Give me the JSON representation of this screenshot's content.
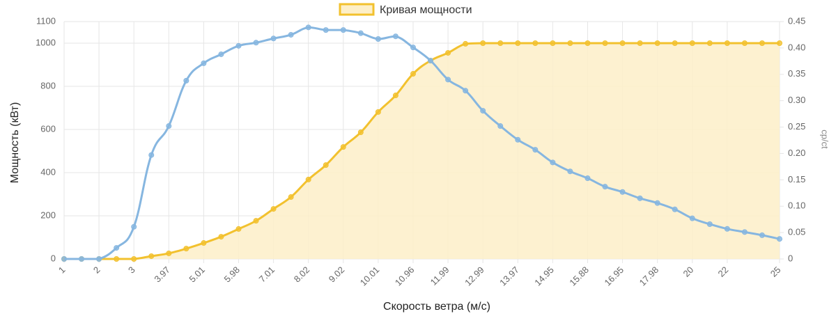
{
  "chart_data": {
    "type": "line",
    "x_label": "Скорость ветра (м/с)",
    "y_label": "Мощность (кВт)",
    "y2_label": "cp/ct",
    "categories": [
      "1",
      null,
      "2",
      null,
      "3",
      null,
      "3.97",
      null,
      "5.01",
      null,
      "5.98",
      null,
      "7.01",
      null,
      "8.02",
      null,
      "9.02",
      null,
      "10.01",
      null,
      "10.96",
      null,
      "11.99",
      null,
      "12.99",
      null,
      "13.97",
      null,
      "14.95",
      null,
      "15.88",
      null,
      "16.95",
      null,
      "17.98",
      null,
      "20",
      null,
      "22",
      null,
      null,
      "25"
    ],
    "series": [
      {
        "name": "Кривая мощности",
        "color": "#f2c12e",
        "fill": "#fdefc8",
        "values": [
          0,
          0,
          0,
          0,
          0,
          13,
          26,
          48,
          74,
          103,
          139,
          177,
          232,
          287,
          368,
          435,
          519,
          587,
          681,
          758,
          858,
          919,
          955,
          997,
          1000,
          1000,
          1000,
          1000,
          1000,
          1000,
          1000,
          1000,
          1000,
          1000,
          1000,
          1000,
          1000,
          1000,
          1000,
          1000,
          1000,
          1000
        ]
      },
      {
        "color": "#86b6e0",
        "axis": "y2",
        "values": [
          0,
          0,
          0,
          0.021,
          0.061,
          0.197,
          0.252,
          0.338,
          0.371,
          0.388,
          0.404,
          0.41,
          0.418,
          0.425,
          0.439,
          0.434,
          0.434,
          0.428,
          0.417,
          0.422,
          0.401,
          0.376,
          0.34,
          0.319,
          0.281,
          0.252,
          0.226,
          0.207,
          0.183,
          0.166,
          0.153,
          0.137,
          0.127,
          0.115,
          0.106,
          0.094,
          0.077,
          0.066,
          0.057,
          0.051,
          0.045,
          0.038
        ]
      }
    ],
    "ylim": [
      0,
      1100
    ],
    "yticks": [
      0,
      200,
      400,
      600,
      800,
      1000,
      1100
    ],
    "y2lim": [
      0,
      0.45
    ],
    "y2ticks": [
      0,
      0.05,
      {
        "value": 0.1,
        "label": "0.10"
      },
      0.15,
      {
        "value": 0.2,
        "label": "0.20"
      },
      0.25,
      {
        "value": 0.3,
        "label": "0.30"
      },
      0.35,
      {
        "value": 0.4,
        "label": "0.40"
      },
      0.45
    ],
    "grid": true,
    "legend": "top"
  }
}
